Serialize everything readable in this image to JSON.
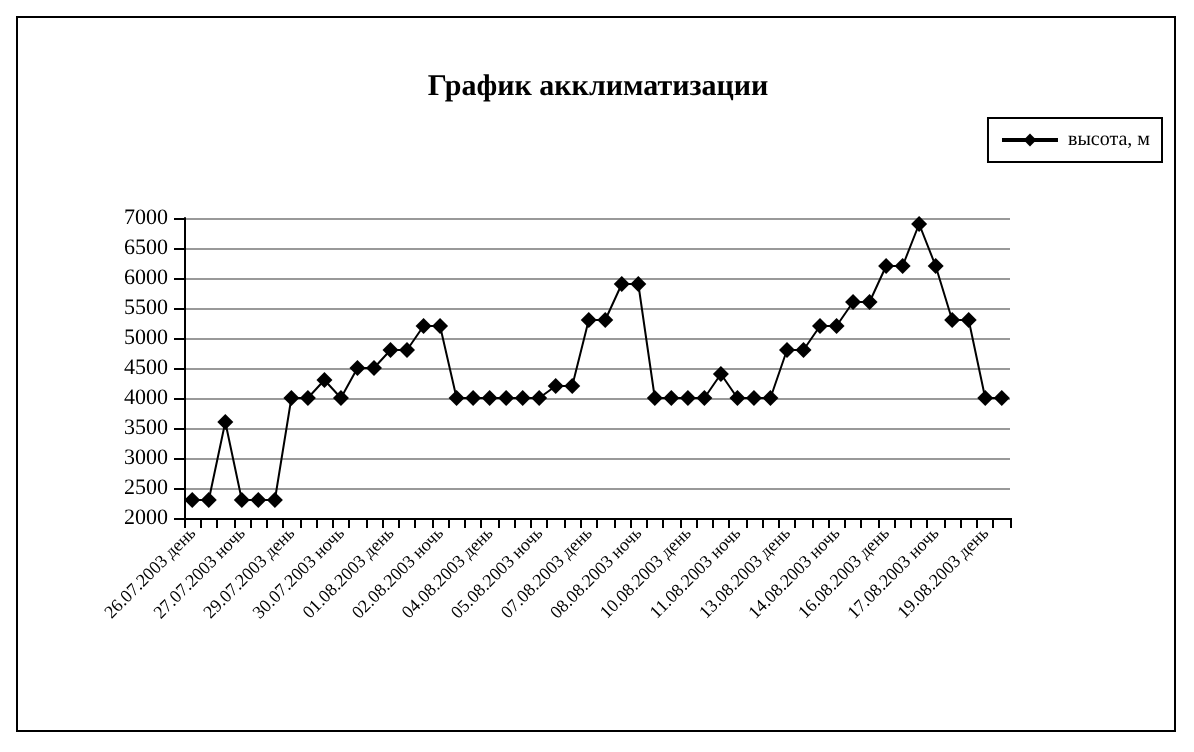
{
  "chart_data": {
    "type": "line",
    "title": "График акклиматизации",
    "categories": [
      "26.07.2003 день",
      null,
      null,
      "27.07.2003 ночь",
      null,
      null,
      "29.07.2003 день",
      null,
      null,
      "30.07.2003 ночь",
      null,
      null,
      "01.08.2003 день",
      null,
      null,
      "02.08.2003 ночь",
      null,
      null,
      "04.08.2003 день",
      null,
      null,
      "05.08.2003 ночь",
      null,
      null,
      "07.08.2003 день",
      null,
      null,
      "08.08.2003 ночь",
      null,
      null,
      "10.08.2003 день",
      null,
      null,
      "11.08.2003 ночь",
      null,
      null,
      "13.08.2003 день",
      null,
      null,
      "14.08.2003 ночь",
      null,
      null,
      "16.08.2003 день",
      null,
      null,
      "17.08.2003 ночь",
      null,
      null,
      "19.08.2003 день",
      null
    ],
    "series": [
      {
        "name": "высота, м",
        "color": "#000000",
        "values": [
          2300,
          2300,
          3600,
          2300,
          2300,
          2300,
          4000,
          4000,
          4300,
          4000,
          4500,
          4500,
          4800,
          4800,
          5200,
          5200,
          4000,
          4000,
          4000,
          4000,
          4000,
          4000,
          4200,
          4200,
          5300,
          5300,
          5900,
          5900,
          4000,
          4000,
          4000,
          4000,
          4400,
          4000,
          4000,
          4000,
          4800,
          4800,
          5200,
          5200,
          5600,
          5600,
          6200,
          6200,
          6900,
          6200,
          5300,
          5300,
          4000,
          4000
        ]
      }
    ],
    "ylim": [
      2000,
      7000
    ],
    "yticks": [
      2000,
      2500,
      3000,
      3500,
      4000,
      4500,
      5000,
      5500,
      6000,
      6500,
      7000
    ],
    "grid": "y",
    "legend": "top right",
    "marker": "diamond",
    "line_style": "solid"
  }
}
